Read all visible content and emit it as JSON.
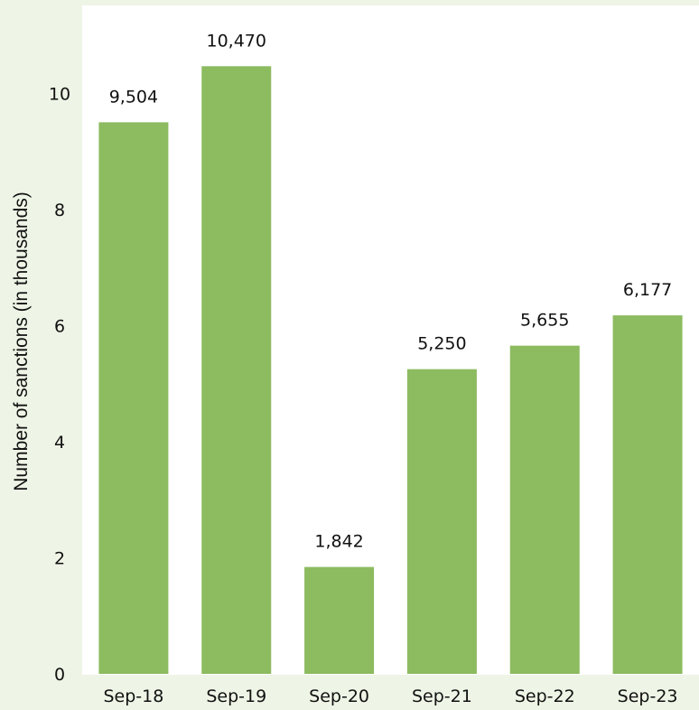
{
  "chart_data": {
    "type": "bar",
    "title": "",
    "xlabel": "",
    "ylabel": "Number of sanctions (in thousands)",
    "categories": [
      "Sep-18",
      "Sep-19",
      "Sep-20",
      "Sep-21",
      "Sep-22",
      "Sep-23"
    ],
    "values": [
      9.504,
      10.47,
      1.842,
      5.25,
      5.655,
      6.177
    ],
    "data_labels": [
      "9,504",
      "10,470",
      "1,842",
      "5,250",
      "5,655",
      "6,177"
    ],
    "ylim": [
      0,
      11
    ],
    "yticks": [
      0,
      2,
      4,
      6,
      8,
      10
    ],
    "ytick_labels": [
      "0",
      "2",
      "4",
      "6",
      "8",
      "10"
    ],
    "grid": false,
    "legend": "none",
    "colors": {
      "bar": "#8cbb60",
      "page_background": "#eef5e6",
      "plot_background": "#ffffff",
      "text": "#111111"
    }
  }
}
